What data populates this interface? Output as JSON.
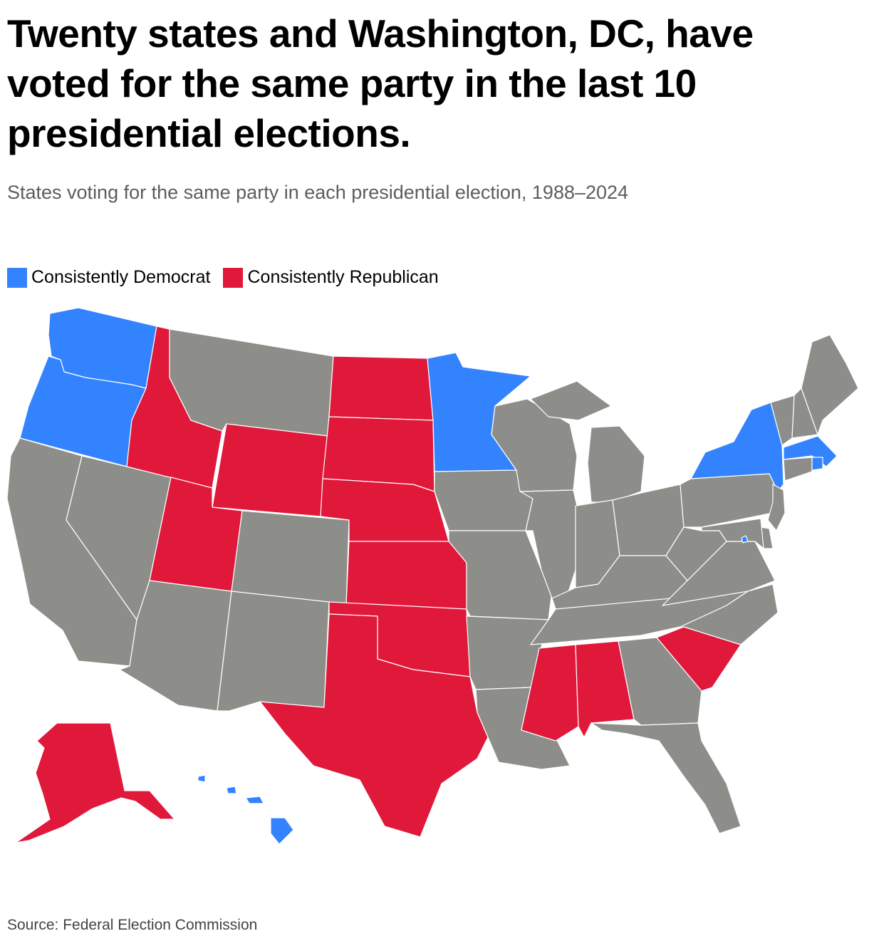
{
  "title": "Twenty states and Washington, DC, have voted for the same party in the last 10 presidential elections.",
  "subtitle": "States voting for the same party in each presidential election, 1988–2024",
  "legend": {
    "democrat": {
      "label": "Consistently Democrat",
      "color": "#3383ff"
    },
    "republican": {
      "label": "Consistently Republican",
      "color": "#e0183a"
    }
  },
  "colors": {
    "democrat": "#3383ff",
    "republican": "#e0183a",
    "other": "#8d8d89",
    "border": "#ffffff"
  },
  "states": {
    "WA": "democrat",
    "OR": "democrat",
    "CA": "other",
    "NV": "other",
    "ID": "republican",
    "MT": "other",
    "WY": "republican",
    "UT": "republican",
    "AZ": "other",
    "CO": "other",
    "NM": "other",
    "ND": "republican",
    "SD": "republican",
    "NE": "republican",
    "KS": "republican",
    "OK": "republican",
    "TX": "republican",
    "MN": "democrat",
    "IA": "other",
    "MO": "other",
    "AR": "other",
    "LA": "other",
    "WI": "other",
    "IL": "other",
    "MI": "other",
    "IN": "other",
    "OH": "other",
    "KY": "other",
    "TN": "other",
    "MS": "republican",
    "AL": "republican",
    "GA": "other",
    "FL": "other",
    "SC": "republican",
    "NC": "other",
    "VA": "other",
    "WV": "other",
    "PA": "other",
    "NY": "democrat",
    "VT": "other",
    "NH": "other",
    "ME": "other",
    "MA": "democrat",
    "RI": "democrat",
    "CT": "other",
    "NJ": "other",
    "DE": "other",
    "MD": "other",
    "DC": "democrat",
    "AK": "republican",
    "HI": "democrat"
  },
  "source": "Source: Federal Election Commission"
}
